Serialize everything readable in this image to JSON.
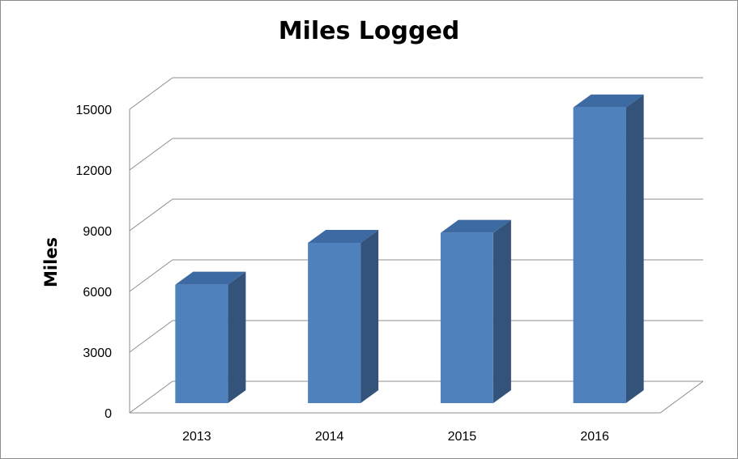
{
  "chart_data": {
    "type": "bar",
    "title": "Miles Logged",
    "xlabel": "",
    "ylabel": "Miles",
    "categories": [
      "2013",
      "2014",
      "2015",
      "2016"
    ],
    "values": [
      5950,
      8050,
      8550,
      14850
    ],
    "ylim": [
      0,
      15000
    ],
    "yticks": [
      "0",
      "3000",
      "6000",
      "9000",
      "12000",
      "15000"
    ],
    "grid": true,
    "legend": "none",
    "style": "3d",
    "colors": {
      "bar_front": "#4f81bd",
      "bar_top": "#3d6aa3",
      "bar_side": "#34537b",
      "grid": "#8c8c8c"
    }
  }
}
